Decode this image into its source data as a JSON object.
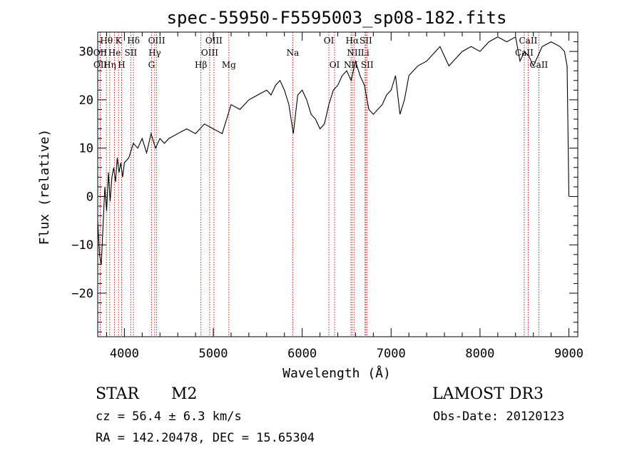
{
  "chart_data": {
    "type": "line",
    "title": "spec-55950-F5595003_sp08-182.fits",
    "xlabel": "Wavelength (Å)",
    "ylabel": "Flux (relative)",
    "xlim": [
      3700,
      9100
    ],
    "ylim": [
      -29,
      34
    ],
    "xticks": [
      4000,
      5000,
      6000,
      7000,
      8000,
      9000
    ],
    "yticks": [
      -20,
      -10,
      0,
      10,
      20,
      30
    ],
    "line_color": "#000000",
    "marker_color": "#cc0000",
    "series": [
      {
        "name": "flux",
        "x": [
          3700,
          3720,
          3740,
          3760,
          3780,
          3800,
          3820,
          3840,
          3860,
          3880,
          3900,
          3920,
          3940,
          3960,
          3980,
          4000,
          4050,
          4100,
          4150,
          4200,
          4250,
          4300,
          4350,
          4400,
          4450,
          4500,
          4600,
          4700,
          4800,
          4900,
          5000,
          5100,
          5150,
          5200,
          5300,
          5400,
          5500,
          5600,
          5650,
          5700,
          5750,
          5800,
          5850,
          5900,
          5950,
          6000,
          6050,
          6100,
          6150,
          6200,
          6250,
          6300,
          6350,
          6400,
          6450,
          6500,
          6550,
          6600,
          6650,
          6700,
          6750,
          6800,
          6850,
          6900,
          6950,
          7000,
          7050,
          7100,
          7150,
          7200,
          7300,
          7400,
          7500,
          7550,
          7600,
          7650,
          7700,
          7800,
          7900,
          8000,
          8100,
          8200,
          8300,
          8400,
          8450,
          8500,
          8550,
          8600,
          8650,
          8700,
          8800,
          8900,
          8950,
          8980,
          9000
        ],
        "y": [
          -5,
          -12,
          -14,
          -6,
          2,
          -3,
          5,
          -1,
          4,
          6,
          3,
          8,
          5,
          7,
          4,
          7,
          8,
          11,
          10,
          12,
          9,
          13,
          10,
          12,
          11,
          12,
          13,
          14,
          13,
          15,
          14,
          13,
          16,
          19,
          18,
          20,
          21,
          22,
          21,
          23,
          24,
          22,
          19,
          13,
          21,
          22,
          20,
          17,
          16,
          14,
          15,
          19,
          22,
          23,
          25,
          26,
          24,
          28,
          25,
          23,
          18,
          17,
          18,
          19,
          21,
          22,
          25,
          17,
          20,
          25,
          27,
          28,
          30,
          31,
          29,
          27,
          28,
          30,
          31,
          30,
          32,
          33,
          32,
          33,
          28,
          30,
          29,
          27,
          29,
          31,
          32,
          31,
          30,
          27,
          0
        ]
      }
    ],
    "lines": [
      {
        "label": "Hθ",
        "x": 3798,
        "row": 1
      },
      {
        "label": "OII",
        "x": 3727,
        "row": 2
      },
      {
        "label": "OII",
        "x": 3729,
        "row": 3
      },
      {
        "label": "Hη",
        "x": 3835,
        "row": 3
      },
      {
        "label": "He",
        "x": 3889,
        "row": 2
      },
      {
        "label": "K",
        "x": 3934,
        "row": 1
      },
      {
        "label": "H",
        "x": 3969,
        "row": 3
      },
      {
        "label": "SII",
        "x": 4072,
        "row": 2
      },
      {
        "label": "Hδ",
        "x": 4102,
        "row": 1
      },
      {
        "label": "G",
        "x": 4305,
        "row": 3
      },
      {
        "label": "Hγ",
        "x": 4341,
        "row": 2
      },
      {
        "label": "OIII",
        "x": 4363,
        "row": 1
      },
      {
        "label": "Hβ",
        "x": 4861,
        "row": 3
      },
      {
        "label": "OIII",
        "x": 4959,
        "row": 2
      },
      {
        "label": "OIII",
        "x": 5007,
        "row": 1
      },
      {
        "label": "Mg",
        "x": 5175,
        "row": 3
      },
      {
        "label": "Na",
        "x": 5894,
        "row": 2
      },
      {
        "label": "OI",
        "x": 6300,
        "row": 1
      },
      {
        "label": "OI",
        "x": 6364,
        "row": 3
      },
      {
        "label": "NII",
        "x": 6548,
        "row": 3
      },
      {
        "label": "Hα",
        "x": 6563,
        "row": 1
      },
      {
        "label": "NII",
        "x": 6583,
        "row": 2
      },
      {
        "label": "Li",
        "x": 6707,
        "row": 2
      },
      {
        "label": "SII",
        "x": 6716,
        "row": 1
      },
      {
        "label": "SII",
        "x": 6731,
        "row": 3
      },
      {
        "label": "CaII",
        "x": 8498,
        "row": 2
      },
      {
        "label": "CaII",
        "x": 8542,
        "row": 1
      },
      {
        "label": "CaII",
        "x": 8662,
        "row": 3
      }
    ]
  },
  "info": {
    "object_class": "STAR",
    "subclass": "M2",
    "survey": "LAMOST DR3",
    "cz": "cz = 56.4 ± 6.3 km/s",
    "obs_date": "Obs-Date: 20120123",
    "coords": "RA = 142.20478, DEC =  15.65304"
  }
}
